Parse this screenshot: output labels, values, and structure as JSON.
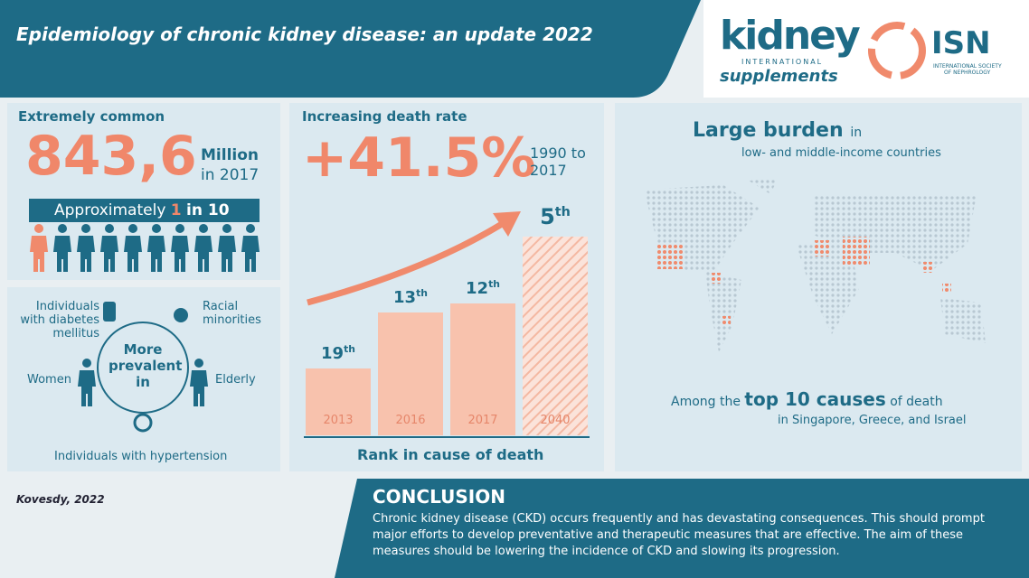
{
  "header": {
    "title": "Epidemiology of chronic kidney disease: an update 2022"
  },
  "logos": {
    "kidney": {
      "name": "kidney",
      "line2": "INTERNATIONAL",
      "line3": "supplements"
    },
    "isn": {
      "name": "ISN",
      "line2": "INTERNATIONAL SOCIETY",
      "line3": "OF NEPHROLOGY"
    }
  },
  "prevalence": {
    "heading": "Extremely common",
    "number": "843,6",
    "unit": "Million",
    "year": "in 2017",
    "ratio": {
      "pre": "Approximately",
      "one": "1",
      "post": "in 10"
    }
  },
  "groups": {
    "center": "More prevalent in",
    "items": [
      "Individuals with diabetes mellitus",
      "Racial minorities",
      "Women",
      "Elderly",
      "Individuals with hypertension"
    ]
  },
  "death": {
    "heading": "Increasing death rate",
    "number": "+41.5%",
    "period": "1990 to 2017",
    "caption": "Rank in cause of death",
    "bars": [
      {
        "year": "2013",
        "rank": "19",
        "suffix": "th"
      },
      {
        "year": "2016",
        "rank": "13",
        "suffix": "th"
      },
      {
        "year": "2017",
        "rank": "12",
        "suffix": "th"
      },
      {
        "year": "2040",
        "rank": "5",
        "suffix": "th"
      }
    ]
  },
  "burden": {
    "heading": "Large burden",
    "heading_tail": "in",
    "subheading": "low- and middle-income countries",
    "line1_pre": "Among the",
    "line1_bold": "top 10 causes",
    "line1_post": "of death",
    "line2": "in Singapore, Greece, and Israel"
  },
  "footer": {
    "citation": "Kovesdy, 2022",
    "heading": "CONCLUSION",
    "text": "Chronic kidney disease (CKD) occurs frequently and has devastating consequences. This should prompt major efforts to develop preventative and therapeutic measures that are effective. The aim of these measures should be lowering the incidence of CKD and slowing its progression."
  }
}
